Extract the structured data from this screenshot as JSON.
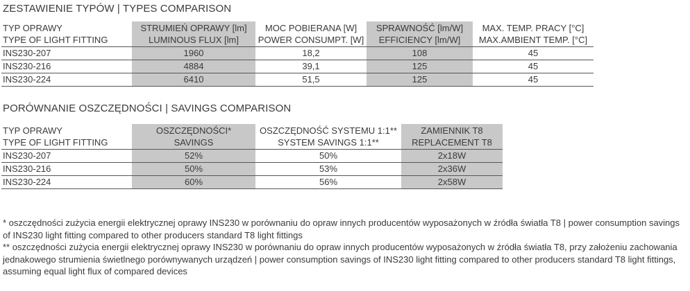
{
  "types": {
    "title": "ZESTAWIENIE TYPÓW | TYPES COMPARISON",
    "headers": [
      {
        "l1": "TYP OPRAWY",
        "l2": "TYPE OF LIGHT FITTING"
      },
      {
        "l1": "STRUMIEŃ OPRAWY [lm]",
        "l2": "LUMINOUS FLUX [lm]"
      },
      {
        "l1": "MOC POBIERANA [W]",
        "l2": "POWER CONSUMPT. [W]"
      },
      {
        "l1": "SPRAWNOŚĆ [lm/W]",
        "l2": "EFFICIENCY [lm/W]"
      },
      {
        "l1": "MAX. TEMP. PRACY [°C]",
        "l2": "MAX.AMBIENT TEMP. [°C]"
      }
    ],
    "rows": [
      [
        "INS230-207",
        "1960",
        "18,2",
        "108",
        "45"
      ],
      [
        "INS230-216",
        "4884",
        "39,1",
        "125",
        "45"
      ],
      [
        "INS230-224",
        "6410",
        "51,5",
        "125",
        "45"
      ]
    ]
  },
  "savings": {
    "title": "PORÓWNANIE OSZCZĘDNOŚCI | SAVINGS COMPARISON",
    "headers": [
      {
        "l1": "TYP OPRAWY",
        "l2": "TYPE OF LIGHT FITTING"
      },
      {
        "l1": "OSZCZĘDNOŚCI*",
        "l2": "SAVINGS"
      },
      {
        "l1": "OSZCZĘDNOŚĆ SYSTEMU 1:1**",
        "l2": "SYSTEM SAVINGS 1:1**"
      },
      {
        "l1": "ZAMIENNIK T8",
        "l2": "REPLACEMENT T8"
      }
    ],
    "rows": [
      [
        "INS230-207",
        "52%",
        "50%",
        "2x18W"
      ],
      [
        "INS230-216",
        "50%",
        "53%",
        "2x36W"
      ],
      [
        "INS230-224",
        "60%",
        "56%",
        "2x58W"
      ]
    ]
  },
  "notes": {
    "note1": "* oszczędności zużycia energii elektrycznej  oprawy INS230  w porównaniu do  opraw innych producentów wyposażonych w źródła światła T8 | power consumption savings of INS230 light fitting compared  to  other producers standard T8 light fittings",
    "note2": "** oszczędności zużycia energii elektrycznej  oprawy INS230  w porównaniu do  opraw innych producentów wyposażonych w źródła światła T8, przy założeniu zachowania jednakowego strumienia świetlnego porównywanych urządzeń | power consumption savings of INS230 light fitting compared to other producers standard T8 light fittings, assuming equal light flux of compared devices"
  }
}
